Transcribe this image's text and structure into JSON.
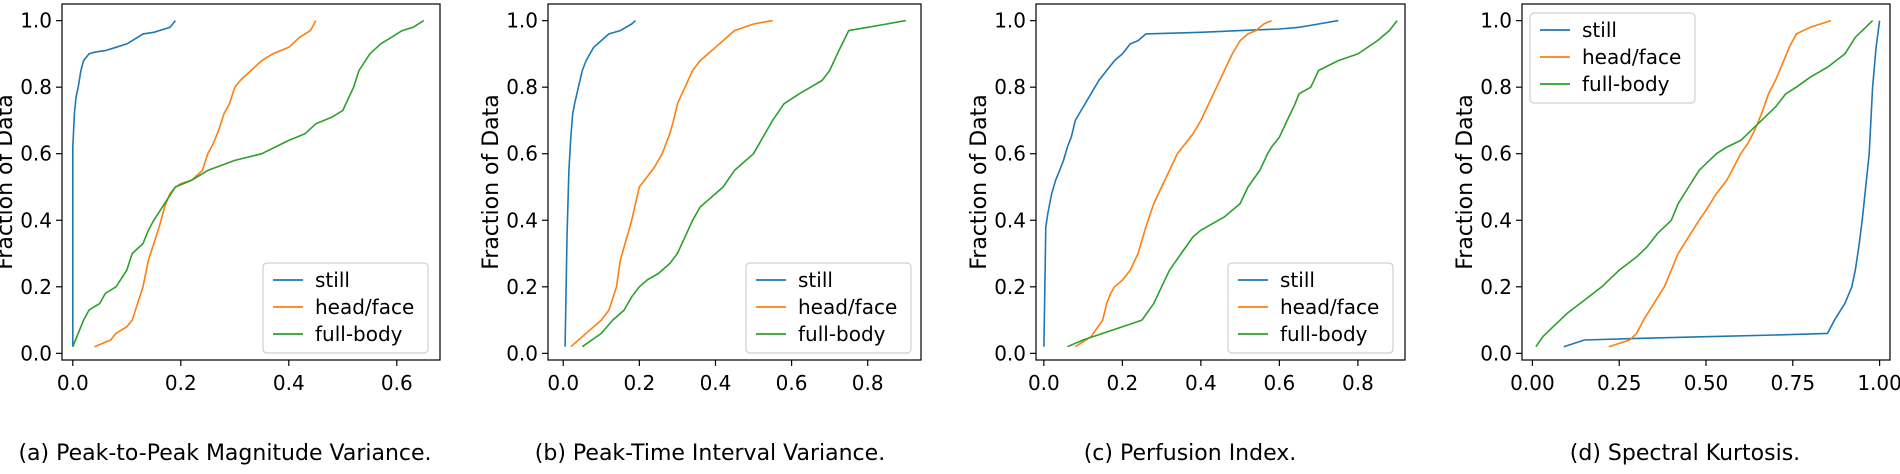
{
  "chart_data": [
    {
      "type": "line",
      "caption": "(a) Peak-to-Peak Magnitude Variance.",
      "ylabel": "Fraction of Data",
      "xlim": [
        -0.02,
        0.68
      ],
      "ylim": [
        -0.02,
        1.05
      ],
      "xticks": [
        0.0,
        0.2,
        0.4,
        0.6
      ],
      "xtick_labels": [
        "0.0",
        "0.2",
        "0.4",
        "0.6"
      ],
      "yticks": [
        0.0,
        0.2,
        0.4,
        0.6,
        0.8,
        1.0
      ],
      "ytick_labels": [
        "0.0",
        "0.2",
        "0.4",
        "0.6",
        "0.8",
        "1.0"
      ],
      "legend_position": "lower-right",
      "series": [
        {
          "name": "still",
          "color": "#1f77b4",
          "x": [
            0.0,
            0.0,
            0.003,
            0.006,
            0.01,
            0.015,
            0.02,
            0.03,
            0.04,
            0.06,
            0.08,
            0.1,
            0.12,
            0.13,
            0.15,
            0.17,
            0.18,
            0.19
          ],
          "y": [
            0.02,
            0.62,
            0.72,
            0.77,
            0.8,
            0.85,
            0.88,
            0.9,
            0.905,
            0.91,
            0.92,
            0.93,
            0.95,
            0.96,
            0.965,
            0.975,
            0.98,
            1.0
          ]
        },
        {
          "name": "head/face",
          "color": "#ff7f0e",
          "x": [
            0.04,
            0.07,
            0.08,
            0.1,
            0.11,
            0.12,
            0.13,
            0.14,
            0.15,
            0.16,
            0.17,
            0.18,
            0.19,
            0.2,
            0.22,
            0.24,
            0.25,
            0.26,
            0.27,
            0.28,
            0.29,
            0.3,
            0.31,
            0.33,
            0.35,
            0.37,
            0.4,
            0.42,
            0.44,
            0.45
          ],
          "y": [
            0.02,
            0.04,
            0.06,
            0.08,
            0.1,
            0.15,
            0.2,
            0.28,
            0.33,
            0.38,
            0.44,
            0.48,
            0.5,
            0.51,
            0.52,
            0.55,
            0.6,
            0.63,
            0.67,
            0.72,
            0.75,
            0.8,
            0.82,
            0.85,
            0.88,
            0.9,
            0.92,
            0.95,
            0.97,
            1.0
          ]
        },
        {
          "name": "full-body",
          "color": "#2ca02c",
          "x": [
            0.0,
            0.02,
            0.03,
            0.05,
            0.06,
            0.08,
            0.1,
            0.11,
            0.13,
            0.14,
            0.15,
            0.17,
            0.19,
            0.22,
            0.25,
            0.3,
            0.35,
            0.4,
            0.43,
            0.45,
            0.48,
            0.5,
            0.52,
            0.53,
            0.55,
            0.57,
            0.59,
            0.61,
            0.63,
            0.65
          ],
          "y": [
            0.02,
            0.1,
            0.13,
            0.15,
            0.18,
            0.2,
            0.25,
            0.3,
            0.33,
            0.37,
            0.4,
            0.45,
            0.5,
            0.52,
            0.55,
            0.58,
            0.6,
            0.64,
            0.66,
            0.69,
            0.71,
            0.73,
            0.8,
            0.85,
            0.9,
            0.93,
            0.95,
            0.97,
            0.98,
            1.0
          ]
        }
      ]
    },
    {
      "type": "line",
      "caption": "(b) Peak-Time Interval Variance.",
      "ylabel": "Fraction of Data",
      "xlim": [
        -0.04,
        0.94
      ],
      "ylim": [
        -0.02,
        1.05
      ],
      "xticks": [
        0.0,
        0.2,
        0.4,
        0.6,
        0.8
      ],
      "xtick_labels": [
        "0.0",
        "0.2",
        "0.4",
        "0.6",
        "0.8"
      ],
      "yticks": [
        0.0,
        0.2,
        0.4,
        0.6,
        0.8,
        1.0
      ],
      "ytick_labels": [
        "0.0",
        "0.2",
        "0.4",
        "0.6",
        "0.8",
        "1.0"
      ],
      "legend_position": "lower-right",
      "series": [
        {
          "name": "still",
          "color": "#1f77b4",
          "x": [
            0.005,
            0.01,
            0.015,
            0.02,
            0.025,
            0.03,
            0.04,
            0.05,
            0.06,
            0.07,
            0.08,
            0.1,
            0.12,
            0.15,
            0.18,
            0.19
          ],
          "y": [
            0.02,
            0.35,
            0.55,
            0.65,
            0.72,
            0.75,
            0.8,
            0.85,
            0.88,
            0.9,
            0.92,
            0.94,
            0.96,
            0.97,
            0.99,
            1.0
          ]
        },
        {
          "name": "head/face",
          "color": "#ff7f0e",
          "x": [
            0.02,
            0.05,
            0.08,
            0.1,
            0.12,
            0.14,
            0.15,
            0.16,
            0.17,
            0.18,
            0.19,
            0.2,
            0.22,
            0.24,
            0.26,
            0.28,
            0.29,
            0.3,
            0.32,
            0.34,
            0.36,
            0.38,
            0.4,
            0.42,
            0.45,
            0.5,
            0.55
          ],
          "y": [
            0.02,
            0.05,
            0.08,
            0.1,
            0.13,
            0.2,
            0.28,
            0.32,
            0.36,
            0.4,
            0.45,
            0.5,
            0.53,
            0.56,
            0.6,
            0.66,
            0.7,
            0.75,
            0.8,
            0.85,
            0.88,
            0.9,
            0.92,
            0.94,
            0.97,
            0.99,
            1.0
          ]
        },
        {
          "name": "full-body",
          "color": "#2ca02c",
          "x": [
            0.05,
            0.1,
            0.13,
            0.16,
            0.18,
            0.2,
            0.22,
            0.25,
            0.28,
            0.3,
            0.32,
            0.34,
            0.36,
            0.38,
            0.4,
            0.42,
            0.45,
            0.48,
            0.5,
            0.55,
            0.58,
            0.62,
            0.65,
            0.68,
            0.7,
            0.72,
            0.75,
            0.8,
            0.85,
            0.9
          ],
          "y": [
            0.02,
            0.06,
            0.1,
            0.13,
            0.17,
            0.2,
            0.22,
            0.24,
            0.27,
            0.3,
            0.35,
            0.4,
            0.44,
            0.46,
            0.48,
            0.5,
            0.55,
            0.58,
            0.6,
            0.7,
            0.75,
            0.78,
            0.8,
            0.82,
            0.85,
            0.9,
            0.97,
            0.98,
            0.99,
            1.0
          ]
        }
      ]
    },
    {
      "type": "line",
      "caption": "(c) Perfusion Index.",
      "ylabel": "Fraction of Data",
      "xlim": [
        -0.02,
        0.92
      ],
      "ylim": [
        -0.02,
        1.05
      ],
      "xticks": [
        0.0,
        0.2,
        0.4,
        0.6,
        0.8
      ],
      "xtick_labels": [
        "0.0",
        "0.2",
        "0.4",
        "0.6",
        "0.8"
      ],
      "yticks": [
        0.0,
        0.2,
        0.4,
        0.6,
        0.8,
        1.0
      ],
      "ytick_labels": [
        "0.0",
        "0.2",
        "0.4",
        "0.6",
        "0.8",
        "1.0"
      ],
      "legend_position": "lower-right",
      "series": [
        {
          "name": "still",
          "color": "#1f77b4",
          "x": [
            0.0,
            0.005,
            0.01,
            0.015,
            0.02,
            0.03,
            0.04,
            0.05,
            0.06,
            0.07,
            0.08,
            0.1,
            0.12,
            0.14,
            0.16,
            0.18,
            0.2,
            0.22,
            0.24,
            0.26,
            0.4,
            0.5,
            0.6,
            0.65,
            0.7,
            0.75
          ],
          "y": [
            0.02,
            0.38,
            0.42,
            0.45,
            0.48,
            0.52,
            0.55,
            0.58,
            0.62,
            0.65,
            0.7,
            0.74,
            0.78,
            0.82,
            0.85,
            0.88,
            0.9,
            0.93,
            0.94,
            0.96,
            0.965,
            0.97,
            0.975,
            0.98,
            0.99,
            1.0
          ]
        },
        {
          "name": "head/face",
          "color": "#ff7f0e",
          "x": [
            0.08,
            0.12,
            0.15,
            0.16,
            0.17,
            0.18,
            0.2,
            0.22,
            0.24,
            0.26,
            0.28,
            0.3,
            0.32,
            0.34,
            0.36,
            0.38,
            0.4,
            0.42,
            0.44,
            0.46,
            0.48,
            0.5,
            0.52,
            0.54,
            0.56,
            0.58
          ],
          "y": [
            0.02,
            0.05,
            0.1,
            0.15,
            0.18,
            0.2,
            0.22,
            0.25,
            0.3,
            0.38,
            0.45,
            0.5,
            0.55,
            0.6,
            0.63,
            0.66,
            0.7,
            0.75,
            0.8,
            0.85,
            0.9,
            0.94,
            0.96,
            0.97,
            0.99,
            1.0
          ]
        },
        {
          "name": "full-body",
          "color": "#2ca02c",
          "x": [
            0.06,
            0.1,
            0.15,
            0.2,
            0.25,
            0.28,
            0.3,
            0.32,
            0.35,
            0.38,
            0.4,
            0.43,
            0.46,
            0.5,
            0.52,
            0.55,
            0.57,
            0.58,
            0.6,
            0.62,
            0.64,
            0.65,
            0.68,
            0.7,
            0.75,
            0.8,
            0.85,
            0.88,
            0.9
          ],
          "y": [
            0.02,
            0.04,
            0.06,
            0.08,
            0.1,
            0.15,
            0.2,
            0.25,
            0.3,
            0.35,
            0.37,
            0.39,
            0.41,
            0.45,
            0.5,
            0.55,
            0.6,
            0.62,
            0.65,
            0.7,
            0.75,
            0.78,
            0.8,
            0.85,
            0.88,
            0.9,
            0.94,
            0.97,
            1.0
          ]
        }
      ]
    },
    {
      "type": "line",
      "caption": "(d) Spectral Kurtosis.",
      "ylabel": "Fraction of Data",
      "xlim": [
        -0.03,
        1.03
      ],
      "ylim": [
        -0.02,
        1.05
      ],
      "xticks": [
        0.0,
        0.25,
        0.5,
        0.75,
        1.0
      ],
      "xtick_labels": [
        "0.00",
        "0.25",
        "0.50",
        "0.75",
        "1.00"
      ],
      "yticks": [
        0.0,
        0.2,
        0.4,
        0.6,
        0.8,
        1.0
      ],
      "ytick_labels": [
        "0.0",
        "0.2",
        "0.4",
        "0.6",
        "0.8",
        "1.0"
      ],
      "legend_position": "upper-left",
      "series": [
        {
          "name": "still",
          "color": "#1f77b4",
          "x": [
            0.09,
            0.15,
            0.3,
            0.5,
            0.7,
            0.85,
            0.87,
            0.9,
            0.92,
            0.93,
            0.94,
            0.95,
            0.96,
            0.97,
            0.98,
            0.99,
            1.0
          ],
          "y": [
            0.02,
            0.04,
            0.045,
            0.05,
            0.055,
            0.06,
            0.1,
            0.15,
            0.2,
            0.25,
            0.32,
            0.4,
            0.5,
            0.6,
            0.8,
            0.92,
            1.0
          ]
        },
        {
          "name": "head/face",
          "color": "#ff7f0e",
          "x": [
            0.22,
            0.28,
            0.3,
            0.32,
            0.35,
            0.38,
            0.4,
            0.42,
            0.45,
            0.48,
            0.5,
            0.53,
            0.56,
            0.58,
            0.6,
            0.62,
            0.64,
            0.66,
            0.68,
            0.7,
            0.72,
            0.74,
            0.76,
            0.8,
            0.86
          ],
          "y": [
            0.02,
            0.04,
            0.06,
            0.1,
            0.15,
            0.2,
            0.25,
            0.3,
            0.35,
            0.4,
            0.43,
            0.48,
            0.52,
            0.56,
            0.6,
            0.63,
            0.67,
            0.72,
            0.78,
            0.82,
            0.87,
            0.92,
            0.96,
            0.98,
            1.0
          ]
        },
        {
          "name": "full-body",
          "color": "#2ca02c",
          "x": [
            0.01,
            0.03,
            0.06,
            0.1,
            0.15,
            0.2,
            0.25,
            0.3,
            0.33,
            0.36,
            0.4,
            0.42,
            0.45,
            0.48,
            0.5,
            0.53,
            0.56,
            0.6,
            0.63,
            0.66,
            0.7,
            0.73,
            0.76,
            0.8,
            0.85,
            0.9,
            0.93,
            0.96,
            0.98
          ],
          "y": [
            0.02,
            0.05,
            0.08,
            0.12,
            0.16,
            0.2,
            0.25,
            0.29,
            0.32,
            0.36,
            0.4,
            0.45,
            0.5,
            0.55,
            0.57,
            0.6,
            0.62,
            0.64,
            0.67,
            0.7,
            0.74,
            0.78,
            0.8,
            0.83,
            0.86,
            0.9,
            0.95,
            0.98,
            1.0
          ]
        }
      ]
    }
  ]
}
